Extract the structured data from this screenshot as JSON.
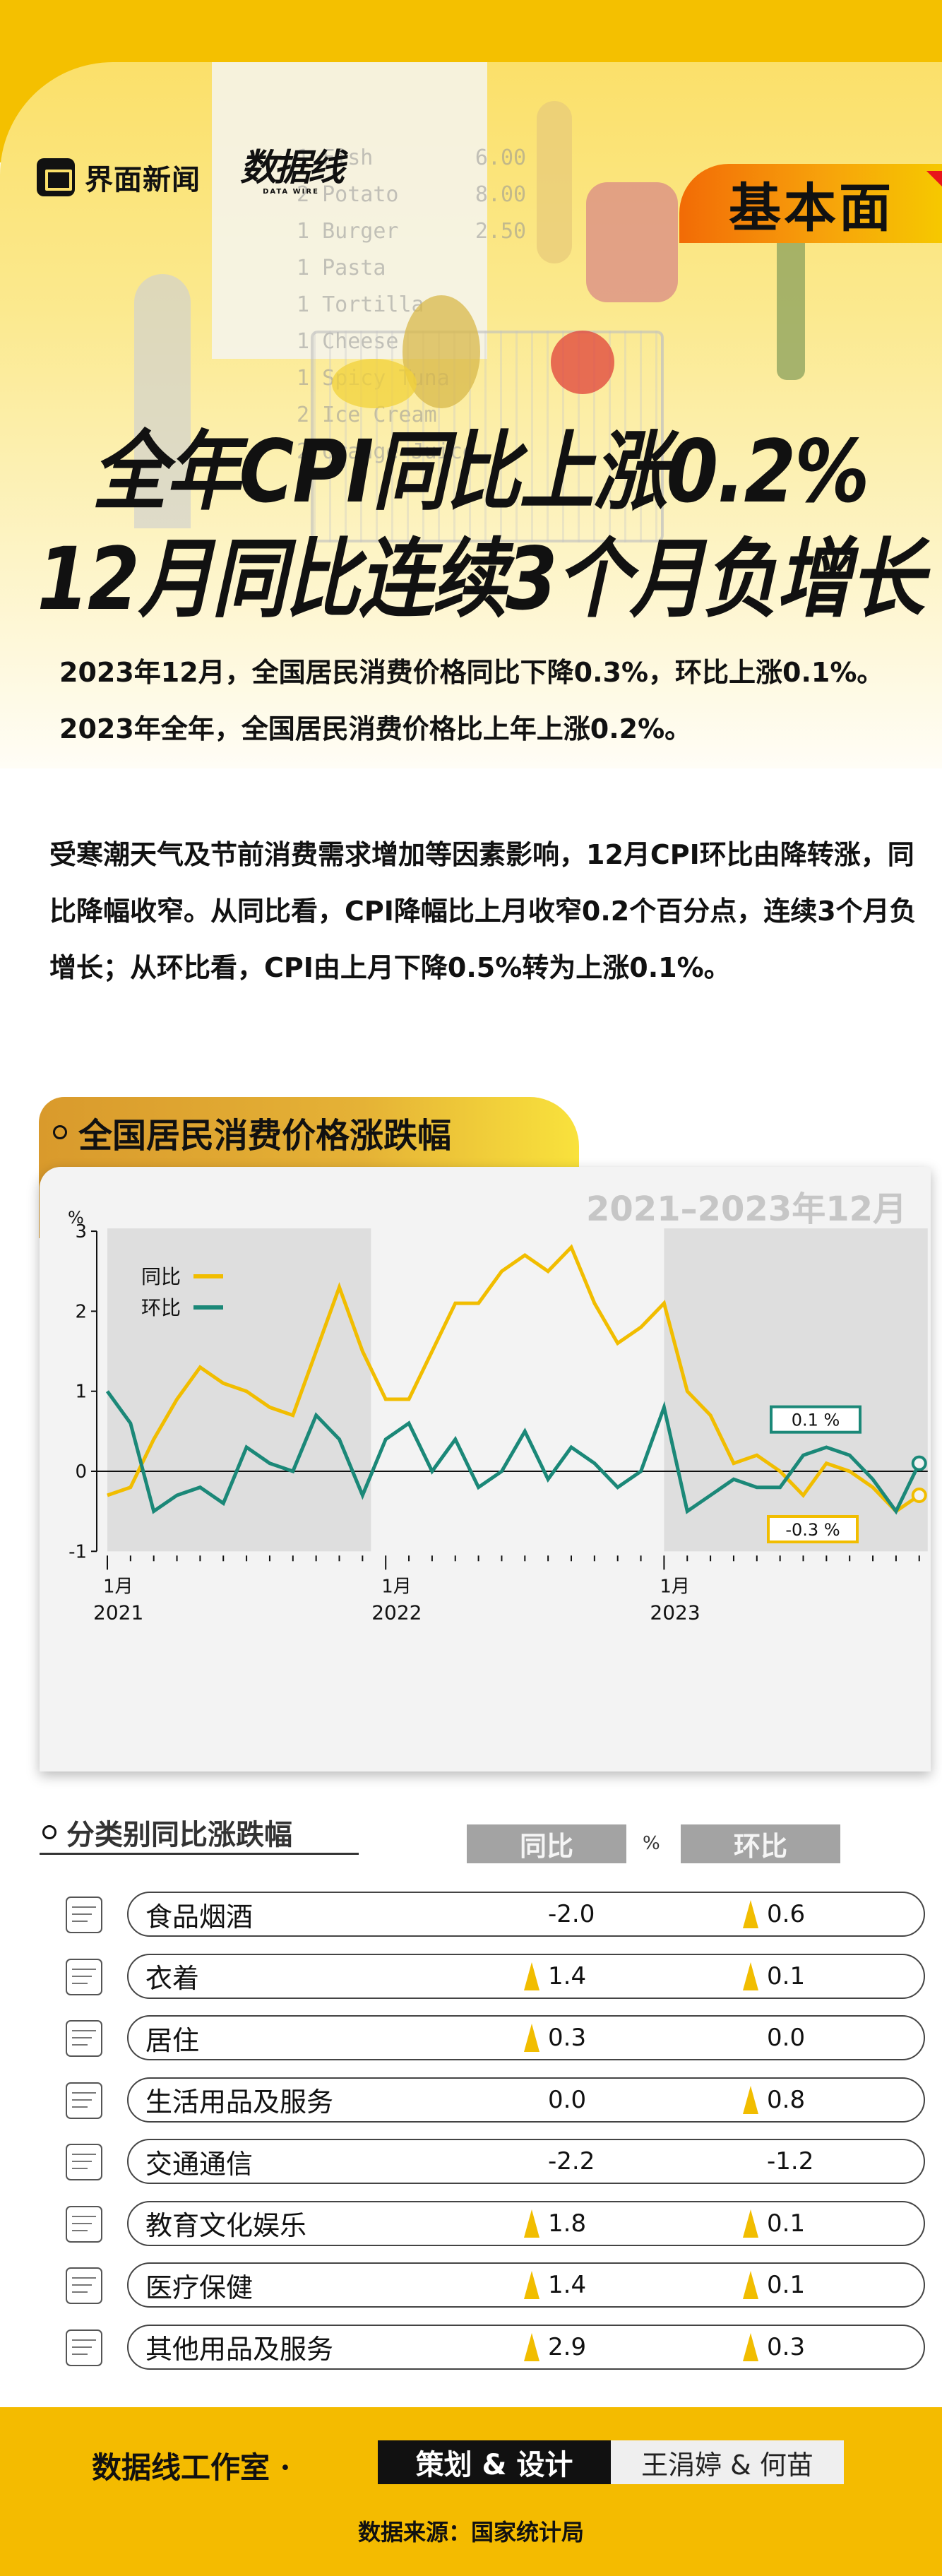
{
  "header": {
    "brand_left": "界面新闻",
    "brand_right": "数据线",
    "brand_right_sub": "DATA WIRE",
    "column_badge": "基本面",
    "receipt_text": "1 Fish        6.00\n2 Potato      8.00\n1 Burger      2.50\n1 Pasta\n1 Tortilla\n1 Cheese\n1 Spicy Tuna\n2 Ice Cream\n2 Orange Juice"
  },
  "headline": {
    "line1": "全年CPI同比上涨0.2%",
    "line2": "12月同比连续3个月负增长"
  },
  "body": {
    "paragraph1": "2023年12月，全国居民消费价格同比下降0.3%，环比上涨0.1%。2023年全年，全国居民消费价格比上年上涨0.2%。",
    "paragraph2": "受寒潮天气及节前消费需求增加等因素影响，12月CPI环比由降转涨，同比降幅收窄。从同比看，CPI降幅比上月收窄0.2个百分点，连续3个月负增长；从环比看，CPI由上月下降0.5%转为上涨0.1%。"
  },
  "section1": {
    "title": "全国居民消费价格涨跌幅",
    "range_label": "2021–2023年12月"
  },
  "chart_data": {
    "type": "line",
    "title": "全国居民消费价格涨跌幅",
    "subtitle": "2021–2023年12月",
    "ylabel": "%",
    "xlabel": "",
    "ylim": [
      -1,
      3
    ],
    "yticks": [
      -1,
      0,
      1,
      2,
      3
    ],
    "x_major_labels": [
      {
        "month": "1月",
        "year": "2021",
        "index": 0
      },
      {
        "month": "1月",
        "year": "2022",
        "index": 12
      },
      {
        "month": "1月",
        "year": "2023",
        "index": 24
      }
    ],
    "shaded_years": [
      "2021",
      "2023"
    ],
    "legend_position": "upper-left",
    "grid": false,
    "x": [
      "2021-01",
      "2021-02",
      "2021-03",
      "2021-04",
      "2021-05",
      "2021-06",
      "2021-07",
      "2021-08",
      "2021-09",
      "2021-10",
      "2021-11",
      "2021-12",
      "2022-01",
      "2022-02",
      "2022-03",
      "2022-04",
      "2022-05",
      "2022-06",
      "2022-07",
      "2022-08",
      "2022-09",
      "2022-10",
      "2022-11",
      "2022-12",
      "2023-01",
      "2023-02",
      "2023-03",
      "2023-04",
      "2023-05",
      "2023-06",
      "2023-07",
      "2023-08",
      "2023-09",
      "2023-10",
      "2023-11",
      "2023-12"
    ],
    "series": [
      {
        "name": "同比",
        "color": "#f1bd00",
        "values": [
          -0.3,
          -0.2,
          0.4,
          0.9,
          1.3,
          1.1,
          1.0,
          0.8,
          0.7,
          1.5,
          2.3,
          1.5,
          0.9,
          0.9,
          1.5,
          2.1,
          2.1,
          2.5,
          2.7,
          2.5,
          2.8,
          2.1,
          1.6,
          1.8,
          2.1,
          1.0,
          0.7,
          0.1,
          0.2,
          0.0,
          -0.3,
          0.1,
          0.0,
          -0.2,
          -0.5,
          -0.3
        ]
      },
      {
        "name": "环比",
        "color": "#1b8878",
        "values": [
          1.0,
          0.6,
          -0.5,
          -0.3,
          -0.2,
          -0.4,
          0.3,
          0.1,
          0.0,
          0.7,
          0.4,
          -0.3,
          0.4,
          0.6,
          0.0,
          0.4,
          -0.2,
          0.0,
          0.5,
          -0.1,
          0.3,
          0.1,
          -0.2,
          0.0,
          0.8,
          -0.5,
          -0.3,
          -0.1,
          -0.2,
          -0.2,
          0.2,
          0.3,
          0.2,
          -0.1,
          -0.5,
          0.1
        ]
      }
    ],
    "annotations": [
      {
        "series": "环比",
        "text": "0.1 %",
        "color": "#1b8878"
      },
      {
        "series": "同比",
        "text": "-0.3 %",
        "color": "#f1bd00"
      }
    ]
  },
  "section2": {
    "title": "分类别同比涨跌幅",
    "col_yoy": "同比",
    "col_unit": "%",
    "col_mom": "环比",
    "rows": [
      {
        "icon": "food-tobacco-wine-icon",
        "label": "食品烟酒",
        "yoy": "-2.0",
        "yoy_up": false,
        "mom": "0.6",
        "mom_up": true
      },
      {
        "icon": "clothing-icon",
        "label": "衣着",
        "yoy": "1.4",
        "yoy_up": true,
        "mom": "0.1",
        "mom_up": true
      },
      {
        "icon": "housing-icon",
        "label": "居住",
        "yoy": "0.3",
        "yoy_up": true,
        "mom": "0.0",
        "mom_up": false
      },
      {
        "icon": "household-goods-icon",
        "label": "生活用品及服务",
        "yoy": "0.0",
        "yoy_up": false,
        "mom": "0.8",
        "mom_up": true
      },
      {
        "icon": "transport-communication-icon",
        "label": "交通通信",
        "yoy": "-2.2",
        "yoy_up": false,
        "mom": "-1.2",
        "mom_up": false
      },
      {
        "icon": "education-culture-icon",
        "label": "教育文化娱乐",
        "yoy": "1.8",
        "yoy_up": true,
        "mom": "0.1",
        "mom_up": true
      },
      {
        "icon": "healthcare-icon",
        "label": "医疗保健",
        "yoy": "1.4",
        "yoy_up": true,
        "mom": "0.1",
        "mom_up": true
      },
      {
        "icon": "other-goods-services-icon",
        "label": "其他用品及服务",
        "yoy": "2.9",
        "yoy_up": true,
        "mom": "0.3",
        "mom_up": true
      }
    ]
  },
  "footer": {
    "studio": "数据线工作室 ·",
    "role": "策划 & 设计",
    "names": "王涓婷 & 何苗",
    "source": "数据来源：国家统计局"
  },
  "colors": {
    "brand_yellow": "#f4c000",
    "yoy_line": "#f1bd00",
    "mom_line": "#1b8878",
    "badge_orange": "#f26b06"
  }
}
